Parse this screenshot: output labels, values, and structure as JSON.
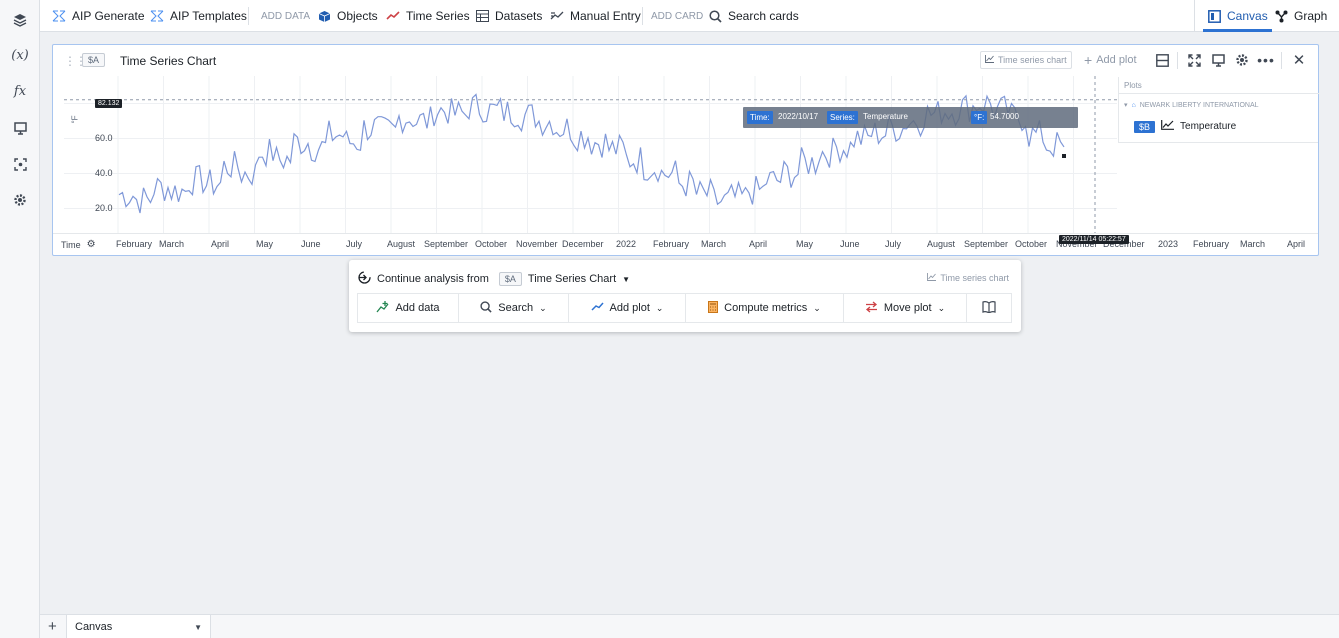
{
  "topbar": {
    "aip_generate": "AIP Generate",
    "aip_templates": "AIP Templates",
    "add_data_label": "ADD DATA",
    "objects": "Objects",
    "time_series": "Time Series",
    "datasets": "Datasets",
    "manual_entry": "Manual Entry",
    "add_card_label": "ADD CARD",
    "search_cards": "Search cards",
    "canvas": "Canvas",
    "graph": "Graph"
  },
  "card": {
    "tag": "$A",
    "title": "Time Series Chart",
    "type_button": "Time series chart",
    "add_plot": "Add plot"
  },
  "chart_data": {
    "type": "line",
    "series": [
      {
        "name": "Temperature",
        "color": "#7f98d8",
        "values": [
          28,
          25,
          32,
          30,
          36,
          34,
          44,
          40,
          52,
          48,
          58,
          55,
          62,
          58,
          66,
          64,
          72,
          70,
          76,
          74,
          78,
          76,
          75,
          73,
          70,
          66,
          62,
          58,
          54,
          48,
          44,
          40,
          34,
          28,
          24,
          26,
          30,
          36,
          40,
          46,
          52,
          55,
          60,
          63,
          66,
          70,
          74,
          76,
          78,
          80,
          76,
          72,
          62,
          56,
          50
        ]
      }
    ],
    "y_ticks": [
      "20.0",
      "40.0",
      "60.0",
      "80.0"
    ],
    "ylim": [
      10,
      90
    ],
    "x_ticks": [
      "February",
      "March",
      "April",
      "May",
      "June",
      "July",
      "August",
      "September",
      "October",
      "November",
      "December",
      "2022",
      "February",
      "March",
      "April",
      "May",
      "June",
      "July",
      "August",
      "September",
      "October",
      "November",
      "December",
      "2023",
      "February",
      "March",
      "April"
    ],
    "xlabel": "Time",
    "y_cursor_value": "82.132",
    "x_cursor_value": "2022/11/14 05:22:57",
    "y_axis_unit": "°F",
    "grid": true
  },
  "tooltip": {
    "time_key": "Time:",
    "time_val": "2022/10/17",
    "series_key": "Series:",
    "series_val": "Temperature",
    "unit_key": "°F:",
    "unit_val": "54.7000"
  },
  "plots_panel": {
    "header": "Plots",
    "group": "NEWARK LIBERTY INTERNATIONAL",
    "tag": "$B",
    "series": "Temperature"
  },
  "continue": {
    "label": "Continue analysis from",
    "tag": "$A",
    "source": "Time Series Chart",
    "type": "Time series chart",
    "add_data": "Add data",
    "search": "Search",
    "add_plot": "Add plot",
    "compute_metrics": "Compute metrics",
    "move_plot": "Move plot"
  },
  "bottom": {
    "tab": "Canvas"
  }
}
